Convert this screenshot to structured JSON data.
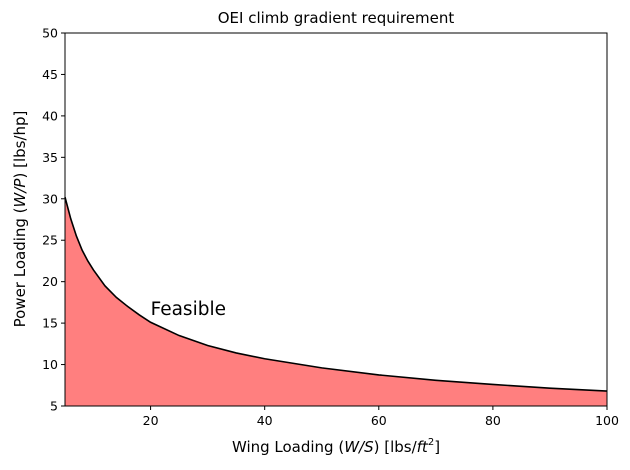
{
  "chart_data": {
    "type": "area",
    "title": "OEI climb gradient requirement",
    "xlabel": {
      "prefix": "Wing Loading (",
      "var": "W/S",
      "mid": ") [lbs/",
      "unit_base": "ft",
      "unit_sup": "2",
      "suffix": "]"
    },
    "ylabel": {
      "prefix": "Power Loading (",
      "var": "W/P",
      "suffix": ") [lbs/hp]"
    },
    "xlim": [
      5,
      100
    ],
    "ylim": [
      5,
      50
    ],
    "xticks": [
      20,
      40,
      60,
      80,
      100
    ],
    "yticks": [
      5,
      10,
      15,
      20,
      25,
      30,
      35,
      40,
      45,
      50
    ],
    "grid": false,
    "series": [
      {
        "line_color": "#000000",
        "fill_color": "#ff7f7f",
        "fill_to": 5,
        "x": [
          5,
          6,
          7,
          8,
          9,
          10,
          12,
          14,
          16,
          18,
          20,
          25,
          30,
          35,
          40,
          50,
          60,
          70,
          80,
          90,
          100
        ],
        "y": [
          30.2,
          27.6,
          25.5,
          23.8,
          22.5,
          21.4,
          19.5,
          18.1,
          17.0,
          16.0,
          15.1,
          13.5,
          12.3,
          11.4,
          10.7,
          9.6,
          8.75,
          8.1,
          7.6,
          7.15,
          6.8
        ]
      }
    ],
    "annotations": [
      {
        "text": "Feasible",
        "x": 20,
        "y": 16
      }
    ]
  }
}
